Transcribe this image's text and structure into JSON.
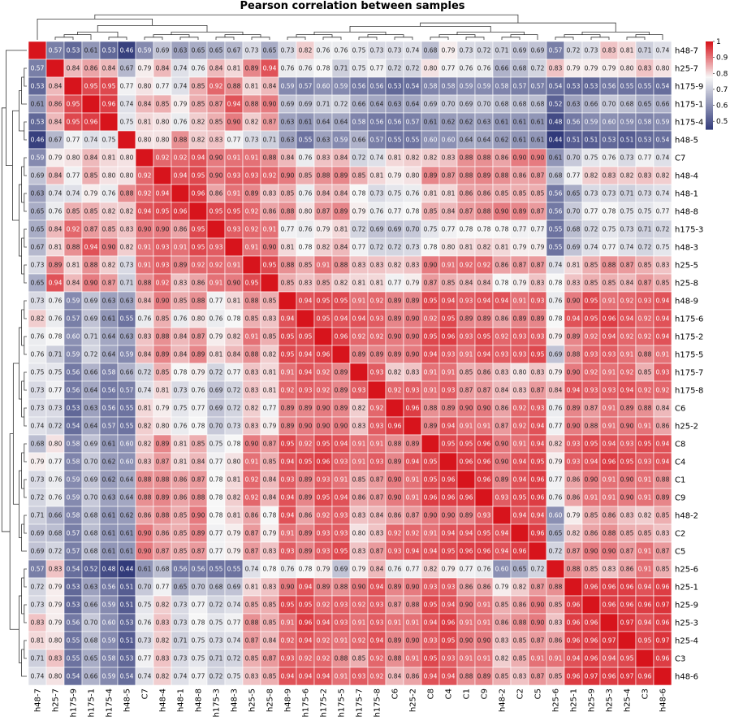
{
  "chart_data": {
    "type": "heatmap",
    "title": "Pearson correlation between samples",
    "labels": [
      "h48-7",
      "h25-7",
      "h175-9",
      "h175-1",
      "h175-4",
      "h48-5",
      "C7",
      "h48-4",
      "h48-1",
      "h48-8",
      "h175-3",
      "h48-3",
      "h25-5",
      "h25-8",
      "h48-9",
      "h175-6",
      "h175-2",
      "h175-5",
      "h175-7",
      "h175-8",
      "C6",
      "h25-2",
      "C8",
      "C4",
      "C1",
      "C9",
      "h48-2",
      "C2",
      "C5",
      "h25-6",
      "h25-1",
      "h25-9",
      "h25-3",
      "h25-4",
      "C3",
      "h48-6"
    ],
    "matrix": [
      [
        1,
        0.57,
        0.53,
        0.61,
        0.53,
        0.46,
        0.59,
        0.69,
        0.63,
        0.65,
        0.65,
        0.67,
        0.73,
        0.65,
        0.73,
        0.82,
        0.76,
        0.76,
        0.75,
        0.73,
        0.73,
        0.74,
        0.68,
        0.79,
        0.73,
        0.72,
        0.71,
        0.69,
        0.69,
        0.57,
        0.72,
        0.73,
        0.83,
        0.81,
        0.71,
        0.74
      ],
      [
        0.57,
        1,
        0.84,
        0.86,
        0.84,
        0.67,
        0.79,
        0.84,
        0.74,
        0.76,
        0.84,
        0.81,
        0.89,
        0.94,
        0.76,
        0.76,
        0.78,
        0.71,
        0.75,
        0.77,
        0.72,
        0.72,
        0.8,
        0.77,
        0.76,
        0.76,
        0.66,
        0.68,
        0.72,
        0.83,
        0.79,
        0.79,
        0.79,
        0.8,
        0.83,
        0.8
      ],
      [
        0.53,
        0.84,
        1,
        0.95,
        0.95,
        0.77,
        0.8,
        0.77,
        0.74,
        0.85,
        0.92,
        0.88,
        0.81,
        0.84,
        0.59,
        0.57,
        0.6,
        0.59,
        0.56,
        0.56,
        0.53,
        0.54,
        0.58,
        0.58,
        0.59,
        0.59,
        0.58,
        0.57,
        0.57,
        0.54,
        0.53,
        0.53,
        0.56,
        0.55,
        0.55,
        0.54
      ],
      [
        0.61,
        0.86,
        0.95,
        1,
        0.96,
        0.74,
        0.84,
        0.85,
        0.79,
        0.85,
        0.87,
        0.94,
        0.88,
        0.9,
        0.69,
        0.69,
        0.71,
        0.72,
        0.66,
        0.64,
        0.63,
        0.64,
        0.69,
        0.7,
        0.69,
        0.7,
        0.68,
        0.68,
        0.68,
        0.52,
        0.63,
        0.66,
        0.7,
        0.68,
        0.65,
        0.66
      ],
      [
        0.53,
        0.84,
        0.95,
        0.96,
        1,
        0.75,
        0.81,
        0.8,
        0.76,
        0.82,
        0.85,
        0.9,
        0.82,
        0.87,
        0.63,
        0.61,
        0.64,
        0.64,
        0.58,
        0.56,
        0.56,
        0.57,
        0.61,
        0.62,
        0.62,
        0.63,
        0.61,
        0.61,
        0.61,
        0.48,
        0.56,
        0.59,
        0.6,
        0.59,
        0.58,
        0.59
      ],
      [
        0.46,
        0.67,
        0.77,
        0.74,
        0.75,
        1,
        0.8,
        0.8,
        0.88,
        0.82,
        0.83,
        0.77,
        0.73,
        0.71,
        0.63,
        0.55,
        0.63,
        0.59,
        0.66,
        0.57,
        0.55,
        0.55,
        0.6,
        0.6,
        0.64,
        0.64,
        0.62,
        0.61,
        0.61,
        0.44,
        0.51,
        0.51,
        0.53,
        0.51,
        0.53,
        0.54
      ],
      [
        0.59,
        0.79,
        0.8,
        0.84,
        0.81,
        0.8,
        1,
        0.92,
        0.92,
        0.94,
        0.9,
        0.91,
        0.91,
        0.88,
        0.84,
        0.76,
        0.83,
        0.84,
        0.72,
        0.74,
        0.81,
        0.82,
        0.82,
        0.83,
        0.88,
        0.88,
        0.86,
        0.9,
        0.9,
        0.61,
        0.7,
        0.75,
        0.76,
        0.73,
        0.77,
        0.74
      ],
      [
        0.69,
        0.84,
        0.77,
        0.85,
        0.8,
        0.8,
        0.92,
        1,
        0.94,
        0.95,
        0.9,
        0.93,
        0.93,
        0.92,
        0.9,
        0.85,
        0.88,
        0.89,
        0.85,
        0.81,
        0.79,
        0.8,
        0.89,
        0.87,
        0.88,
        0.89,
        0.88,
        0.86,
        0.87,
        0.68,
        0.77,
        0.82,
        0.83,
        0.82,
        0.83,
        0.82
      ],
      [
        0.63,
        0.74,
        0.74,
        0.79,
        0.76,
        0.88,
        0.92,
        0.94,
        1,
        0.96,
        0.86,
        0.91,
        0.89,
        0.83,
        0.85,
        0.76,
        0.84,
        0.84,
        0.78,
        0.73,
        0.75,
        0.76,
        0.81,
        0.81,
        0.86,
        0.86,
        0.85,
        0.85,
        0.85,
        0.56,
        0.65,
        0.73,
        0.73,
        0.71,
        0.73,
        0.74
      ],
      [
        0.65,
        0.76,
        0.85,
        0.85,
        0.82,
        0.82,
        0.94,
        0.95,
        0.96,
        1,
        0.95,
        0.95,
        0.92,
        0.86,
        0.88,
        0.8,
        0.87,
        0.89,
        0.79,
        0.76,
        0.77,
        0.78,
        0.85,
        0.84,
        0.87,
        0.88,
        0.9,
        0.89,
        0.87,
        0.56,
        0.7,
        0.77,
        0.78,
        0.75,
        0.75,
        0.77
      ],
      [
        0.65,
        0.84,
        0.92,
        0.87,
        0.85,
        0.83,
        0.9,
        0.9,
        0.86,
        0.95,
        1,
        0.93,
        0.92,
        0.91,
        0.77,
        0.76,
        0.79,
        0.81,
        0.72,
        0.69,
        0.69,
        0.7,
        0.75,
        0.77,
        0.78,
        0.78,
        0.78,
        0.77,
        0.77,
        0.55,
        0.68,
        0.72,
        0.75,
        0.73,
        0.71,
        0.72
      ],
      [
        0.67,
        0.81,
        0.88,
        0.94,
        0.9,
        0.82,
        0.91,
        0.93,
        0.91,
        0.95,
        0.93,
        1,
        0.91,
        0.9,
        0.81,
        0.78,
        0.82,
        0.84,
        0.77,
        0.72,
        0.72,
        0.73,
        0.78,
        0.8,
        0.81,
        0.82,
        0.81,
        0.79,
        0.79,
        0.55,
        0.69,
        0.74,
        0.77,
        0.74,
        0.72,
        0.75
      ],
      [
        0.73,
        0.89,
        0.81,
        0.88,
        0.82,
        0.73,
        0.91,
        0.93,
        0.89,
        0.92,
        0.92,
        0.91,
        1,
        0.95,
        0.88,
        0.85,
        0.91,
        0.88,
        0.83,
        0.83,
        0.82,
        0.83,
        0.9,
        0.91,
        0.92,
        0.92,
        0.86,
        0.87,
        0.87,
        0.74,
        0.81,
        0.85,
        0.88,
        0.87,
        0.85,
        0.83
      ],
      [
        0.65,
        0.94,
        0.84,
        0.9,
        0.87,
        0.71,
        0.88,
        0.92,
        0.83,
        0.86,
        0.91,
        0.9,
        0.95,
        1,
        0.85,
        0.83,
        0.85,
        0.82,
        0.81,
        0.81,
        0.77,
        0.79,
        0.87,
        0.85,
        0.84,
        0.84,
        0.78,
        0.79,
        0.83,
        0.78,
        0.83,
        0.85,
        0.85,
        0.84,
        0.87,
        0.85
      ],
      [
        0.73,
        0.76,
        0.59,
        0.69,
        0.63,
        0.63,
        0.84,
        0.9,
        0.85,
        0.88,
        0.77,
        0.81,
        0.88,
        0.85,
        1,
        0.94,
        0.95,
        0.95,
        0.91,
        0.92,
        0.89,
        0.89,
        0.95,
        0.94,
        0.93,
        0.94,
        0.94,
        0.91,
        0.93,
        0.76,
        0.9,
        0.95,
        0.91,
        0.92,
        0.93,
        0.94
      ],
      [
        0.82,
        0.76,
        0.57,
        0.69,
        0.61,
        0.55,
        0.76,
        0.85,
        0.76,
        0.8,
        0.76,
        0.78,
        0.85,
        0.83,
        0.94,
        1,
        0.95,
        0.94,
        0.94,
        0.93,
        0.89,
        0.9,
        0.92,
        0.95,
        0.89,
        0.89,
        0.86,
        0.89,
        0.89,
        0.78,
        0.94,
        0.95,
        0.96,
        0.94,
        0.92,
        0.94
      ],
      [
        0.76,
        0.78,
        0.6,
        0.71,
        0.64,
        0.63,
        0.83,
        0.88,
        0.84,
        0.87,
        0.79,
        0.82,
        0.91,
        0.85,
        0.95,
        0.95,
        1,
        0.96,
        0.92,
        0.92,
        0.9,
        0.9,
        0.95,
        0.96,
        0.93,
        0.95,
        0.92,
        0.93,
        0.93,
        0.79,
        0.89,
        0.92,
        0.94,
        0.92,
        0.92,
        0.94
      ],
      [
        0.76,
        0.71,
        0.59,
        0.72,
        0.64,
        0.59,
        0.84,
        0.89,
        0.84,
        0.89,
        0.81,
        0.84,
        0.88,
        0.82,
        0.95,
        0.94,
        0.96,
        1,
        0.89,
        0.89,
        0.89,
        0.9,
        0.94,
        0.93,
        0.91,
        0.94,
        0.93,
        0.93,
        0.95,
        0.69,
        0.88,
        0.93,
        0.93,
        0.91,
        0.88,
        0.91
      ],
      [
        0.75,
        0.75,
        0.56,
        0.66,
        0.58,
        0.66,
        0.72,
        0.85,
        0.78,
        0.79,
        0.72,
        0.77,
        0.83,
        0.81,
        0.91,
        0.94,
        0.92,
        0.89,
        1,
        0.93,
        0.82,
        0.83,
        0.91,
        0.91,
        0.85,
        0.86,
        0.83,
        0.8,
        0.83,
        0.79,
        0.9,
        0.92,
        0.91,
        0.92,
        0.85,
        0.93
      ],
      [
        0.73,
        0.77,
        0.56,
        0.64,
        0.56,
        0.57,
        0.74,
        0.81,
        0.73,
        0.76,
        0.69,
        0.72,
        0.83,
        0.81,
        0.92,
        0.93,
        0.92,
        0.89,
        0.93,
        1,
        0.92,
        0.93,
        0.91,
        0.93,
        0.87,
        0.87,
        0.84,
        0.83,
        0.87,
        0.84,
        0.94,
        0.93,
        0.93,
        0.94,
        0.92,
        0.92
      ],
      [
        0.73,
        0.73,
        0.53,
        0.63,
        0.56,
        0.55,
        0.81,
        0.79,
        0.75,
        0.77,
        0.69,
        0.72,
        0.82,
        0.77,
        0.89,
        0.89,
        0.9,
        0.89,
        0.82,
        0.92,
        1,
        0.96,
        0.88,
        0.89,
        0.9,
        0.9,
        0.86,
        0.92,
        0.93,
        0.76,
        0.89,
        0.87,
        0.91,
        0.89,
        0.88,
        0.84
      ],
      [
        0.74,
        0.72,
        0.54,
        0.64,
        0.57,
        0.55,
        0.82,
        0.8,
        0.76,
        0.78,
        0.7,
        0.73,
        0.83,
        0.79,
        0.89,
        0.9,
        0.9,
        0.9,
        0.83,
        0.93,
        0.96,
        1,
        0.89,
        0.94,
        0.91,
        0.91,
        0.87,
        0.92,
        0.94,
        0.77,
        0.9,
        0.88,
        0.91,
        0.9,
        0.91,
        0.86
      ],
      [
        0.68,
        0.8,
        0.58,
        0.69,
        0.61,
        0.6,
        0.82,
        0.89,
        0.81,
        0.85,
        0.75,
        0.78,
        0.9,
        0.87,
        0.95,
        0.92,
        0.95,
        0.94,
        0.91,
        0.91,
        0.88,
        0.89,
        1,
        0.95,
        0.95,
        0.96,
        0.9,
        0.91,
        0.94,
        0.82,
        0.93,
        0.95,
        0.94,
        0.93,
        0.95,
        0.94
      ],
      [
        0.79,
        0.77,
        0.58,
        0.7,
        0.62,
        0.6,
        0.83,
        0.87,
        0.81,
        0.84,
        0.77,
        0.8,
        0.91,
        0.85,
        0.94,
        0.95,
        0.96,
        0.93,
        0.91,
        0.93,
        0.89,
        0.94,
        0.95,
        1,
        0.96,
        0.96,
        0.9,
        0.94,
        0.95,
        0.79,
        0.93,
        0.94,
        0.96,
        0.95,
        0.93,
        0.94
      ],
      [
        0.73,
        0.76,
        0.59,
        0.69,
        0.62,
        0.64,
        0.88,
        0.88,
        0.86,
        0.87,
        0.78,
        0.81,
        0.92,
        0.84,
        0.93,
        0.89,
        0.93,
        0.91,
        0.85,
        0.87,
        0.9,
        0.91,
        0.95,
        0.96,
        1,
        0.96,
        0.89,
        0.94,
        0.96,
        0.77,
        0.86,
        0.9,
        0.91,
        0.9,
        0.91,
        0.88
      ],
      [
        0.72,
        0.76,
        0.59,
        0.7,
        0.63,
        0.64,
        0.88,
        0.89,
        0.86,
        0.88,
        0.78,
        0.82,
        0.92,
        0.84,
        0.94,
        0.89,
        0.95,
        0.94,
        0.86,
        0.87,
        0.9,
        0.91,
        0.96,
        0.96,
        0.96,
        1,
        0.93,
        0.95,
        0.96,
        0.76,
        0.86,
        0.91,
        0.91,
        0.9,
        0.91,
        0.89
      ],
      [
        0.71,
        0.66,
        0.58,
        0.68,
        0.61,
        0.62,
        0.86,
        0.88,
        0.85,
        0.9,
        0.78,
        0.81,
        0.86,
        0.78,
        0.94,
        0.86,
        0.92,
        0.93,
        0.83,
        0.84,
        0.86,
        0.87,
        0.9,
        0.9,
        0.89,
        0.93,
        1,
        0.94,
        0.94,
        0.6,
        0.79,
        0.85,
        0.86,
        0.83,
        0.82,
        0.85
      ],
      [
        0.69,
        0.68,
        0.57,
        0.68,
        0.61,
        0.61,
        0.9,
        0.86,
        0.85,
        0.89,
        0.77,
        0.79,
        0.87,
        0.79,
        0.91,
        0.89,
        0.93,
        0.93,
        0.8,
        0.83,
        0.92,
        0.92,
        0.91,
        0.94,
        0.94,
        0.95,
        0.94,
        1,
        0.96,
        0.65,
        0.82,
        0.86,
        0.88,
        0.85,
        0.85,
        0.83
      ],
      [
        0.69,
        0.72,
        0.57,
        0.68,
        0.61,
        0.61,
        0.9,
        0.87,
        0.85,
        0.87,
        0.77,
        0.79,
        0.87,
        0.83,
        0.93,
        0.89,
        0.93,
        0.95,
        0.83,
        0.87,
        0.93,
        0.94,
        0.94,
        0.95,
        0.96,
        0.96,
        0.94,
        0.96,
        1,
        0.72,
        0.87,
        0.9,
        0.9,
        0.87,
        0.91,
        0.87
      ],
      [
        0.57,
        0.83,
        0.54,
        0.52,
        0.48,
        0.44,
        0.61,
        0.68,
        0.56,
        0.56,
        0.55,
        0.55,
        0.74,
        0.78,
        0.76,
        0.78,
        0.79,
        0.69,
        0.79,
        0.84,
        0.76,
        0.77,
        0.82,
        0.79,
        0.77,
        0.76,
        0.6,
        0.65,
        0.72,
        1,
        0.88,
        0.85,
        0.83,
        0.86,
        0.91,
        0.85
      ],
      [
        0.72,
        0.79,
        0.53,
        0.63,
        0.56,
        0.51,
        0.7,
        0.77,
        0.65,
        0.7,
        0.68,
        0.69,
        0.81,
        0.83,
        0.9,
        0.94,
        0.89,
        0.88,
        0.9,
        0.94,
        0.89,
        0.9,
        0.93,
        0.93,
        0.86,
        0.86,
        0.79,
        0.82,
        0.87,
        0.88,
        1,
        0.96,
        0.96,
        0.96,
        0.94,
        0.96
      ],
      [
        0.73,
        0.79,
        0.53,
        0.66,
        0.59,
        0.51,
        0.75,
        0.82,
        0.73,
        0.77,
        0.72,
        0.74,
        0.85,
        0.85,
        0.95,
        0.95,
        0.92,
        0.93,
        0.92,
        0.93,
        0.87,
        0.88,
        0.95,
        0.94,
        0.9,
        0.91,
        0.85,
        0.86,
        0.9,
        0.85,
        0.96,
        1,
        0.96,
        0.96,
        0.96,
        0.97
      ],
      [
        0.83,
        0.79,
        0.56,
        0.7,
        0.6,
        0.53,
        0.76,
        0.83,
        0.73,
        0.78,
        0.75,
        0.77,
        0.88,
        0.85,
        0.91,
        0.96,
        0.94,
        0.93,
        0.91,
        0.93,
        0.91,
        0.91,
        0.94,
        0.96,
        0.91,
        0.91,
        0.86,
        0.88,
        0.9,
        0.83,
        0.96,
        0.96,
        1,
        0.97,
        0.94,
        0.96
      ],
      [
        0.81,
        0.8,
        0.55,
        0.68,
        0.59,
        0.51,
        0.73,
        0.82,
        0.71,
        0.75,
        0.73,
        0.74,
        0.87,
        0.84,
        0.92,
        0.94,
        0.92,
        0.91,
        0.92,
        0.94,
        0.89,
        0.9,
        0.93,
        0.95,
        0.9,
        0.9,
        0.83,
        0.85,
        0.87,
        0.86,
        0.96,
        0.96,
        0.97,
        1,
        0.95,
        0.97
      ],
      [
        0.71,
        0.83,
        0.55,
        0.65,
        0.58,
        0.53,
        0.77,
        0.83,
        0.73,
        0.75,
        0.71,
        0.72,
        0.85,
        0.87,
        0.93,
        0.92,
        0.92,
        0.88,
        0.85,
        0.92,
        0.88,
        0.91,
        0.95,
        0.93,
        0.91,
        0.91,
        0.82,
        0.85,
        0.91,
        0.91,
        0.94,
        0.96,
        0.94,
        0.95,
        1,
        0.96
      ],
      [
        0.74,
        0.8,
        0.54,
        0.66,
        0.59,
        0.54,
        0.74,
        0.82,
        0.74,
        0.77,
        0.72,
        0.75,
        0.83,
        0.85,
        0.94,
        0.94,
        0.94,
        0.91,
        0.93,
        0.92,
        0.84,
        0.86,
        0.94,
        0.94,
        0.88,
        0.89,
        0.85,
        0.83,
        0.87,
        0.85,
        0.96,
        0.97,
        0.96,
        0.97,
        0.96,
        1
      ]
    ],
    "colorbar": {
      "min": 0.45,
      "max": 1.0,
      "ticks": [
        1,
        0.9,
        0.8,
        0.7,
        0.6,
        0.5
      ]
    },
    "colors": {
      "low": "#313a7a",
      "mid": "#f7f7f7",
      "high": "#d7141c"
    },
    "dendrogram_groups": [
      [
        0
      ],
      [
        1,
        13
      ],
      [
        2,
        5
      ],
      [
        6,
        11
      ],
      [
        12,
        13
      ],
      [
        14,
        19
      ],
      [
        20,
        28
      ],
      [
        29,
        35
      ]
    ]
  }
}
